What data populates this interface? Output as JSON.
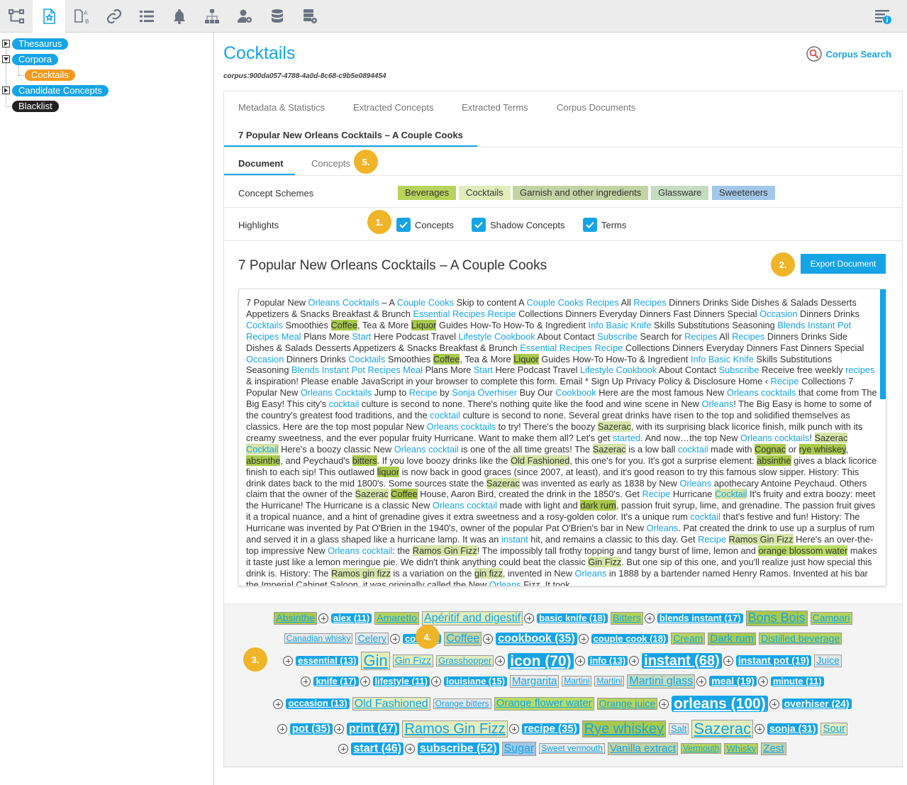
{
  "toolbar": {
    "icons": [
      "sitemap-icon",
      "corpus-star-icon",
      "compare-ab-icon",
      "link-icon",
      "list-icon",
      "bell-icon",
      "hierarchy-icon",
      "user-settings-icon",
      "database-icon",
      "server-settings-icon",
      "info-list-icon"
    ]
  },
  "sidebar": {
    "items": [
      "Thesaurus",
      "Corpora",
      "Cocktails",
      "Candidate Concepts",
      "Blacklist"
    ]
  },
  "header": {
    "title": "Cocktails",
    "corpus_id": "corpus:900da057-4788-4a0d-8c68-c9b5e0894454",
    "corpus_search": "Corpus Search"
  },
  "tabs": [
    "Metadata & Statistics",
    "Extracted Concepts",
    "Extracted Terms",
    "Corpus Documents",
    "7 Popular New Orleans Cocktails – A Couple Cooks"
  ],
  "subtabs": [
    "Document",
    "Concepts"
  ],
  "concept_schemes": {
    "label": "Concept Schemes",
    "items": [
      {
        "name": "Beverages",
        "color": "#b8d35b"
      },
      {
        "name": "Cocktails",
        "color": "#e3edbb"
      },
      {
        "name": "Garnish and other ingredients",
        "color": "#c4d3a4"
      },
      {
        "name": "Glassware",
        "color": "#c5dcc0"
      },
      {
        "name": "Sweeteners",
        "color": "#a3c7e8"
      }
    ]
  },
  "highlights": {
    "label": "Highlights",
    "options": [
      "Concepts",
      "Shadow Concepts",
      "Terms"
    ]
  },
  "badges": [
    "1.",
    "2.",
    "3.",
    "4.",
    "5."
  ],
  "document": {
    "title": "7 Popular New Orleans Cocktails – A Couple Cooks",
    "export_label": "Export Document",
    "body": "7 Popular New Orleans Cocktails – A Couple Cooks Skip to content A Couple Cooks Recipes All Recipes Dinners Drinks Side Dishes & Salads Desserts Appetizers & Snacks Breakfast & Brunch Essential Recipes Recipe Collections Dinners Everyday Dinners Fast Dinners Special Occasion Dinners Drinks Cocktails Smoothies Coffee, Tea & More Liquor Guides How-To How-To & Ingredient Info Basic Knife Skills Substitutions Seasoning Blends Instant Pot Recipes Meal Plans More Start Here Podcast Travel Lifestyle Cookbook About Contact Subscribe Search for Recipes All Recipes Dinners Drinks Side Dishes & Salads Desserts Appetizers & Snacks Breakfast & Brunch Essential Recipes Recipe Collections Dinners Everyday Dinners Fast Dinners Special Occasion Dinners Drinks Cocktails Smoothies Coffee, Tea & More Liquor Guides How-To How-To & Ingredient Info Basic Knife Skills Substitutions Seasoning Blends Instant Pot Recipes Meal Plans More Start Here Podcast Travel Lifestyle Cookbook About Contact Subscribe Receive free weekly recipes & inspiration! Please enable JavaScript in your browser to complete this form. Email * Sign Up Privacy Policy & Disclosure Home ‹ Recipe Collections 7 Popular New Orleans Cocktails Jump to Recipe by Sonja Overhiser Buy Our Cookbook Here are the most famous New Orleans cocktails that come from The Big Easy! This city's cocktail culture is second to none. There's nothing quite like the food and wine scene in New Orleans! The Big Easy is home to some of the country's greatest food traditions, and the cocktail culture is second to none. Several great drinks have risen to the top and solidified themselves as classics. Here are the top most popular New Orleans cocktails to try! There's the boozy Sazerac, with its surprising black licorice finish, milk punch with its creamy sweetness, and the ever popular fruity Hurricane. Want to make them all? Let's get started. And now…the top New Orleans cocktails! Sazerac Cocktail Here's a boozy classic New Orleans cocktail is one of the all time greats! The Sazerac is a low ball cocktail made with Cognac or rye whiskey, absinthe, and Peychaud's bitters. If you love boozy drinks like the Old Fashioned, this one's for you. It's got a surprise element: absinthe gives a black licorice finish to each sip! This outlawed liquor is now back in good graces (since 2007, at least), and it's good reason to try this famous slow sipper. History: This drink dates back to the mid 1800's. Some sources state the Sazerac was invented as early as 1838 by New Orleans apothecary Antoine Peychaud. Others claim that the owner of the Sazerac Coffee House, Aaron Bird, created the drink in the 1850's. Get Recipe Hurricane Cocktail It's fruity and extra boozy: meet the Hurricane! The Hurricane is a classic New Orleans cocktail made with light and dark rum, passion fruit syrup, lime, and grenadine. The passion fruit gives it a tropical nuance, and a hint of grenadine gives it extra sweetness and a rosy-golden color. It's a unique rum cocktail that's festive and fun! History: The Hurricane was invented by Pat O'Brien in the 1940's, owner of the popular Pat O'Brien's bar in New Orleans. Pat created the drink to use up a surplus of rum and served it in a glass shaped like a hurricane lamp. It was an instant hit, and remains a classic to this day. Get Recipe Ramos Gin Fizz Here's an over-the-top impressive New Orleans cocktail: the Ramos Gin Fizz! The impossibly tall frothy topping and tangy burst of lime, lemon and orange blossom water makes it taste just like a lemon meringue pie. We didn't think anything could beat the classic Gin Fizz. But one sip of this one, and you'll realize just how special this drink is. History: The Ramos gin fizz is a variation on the gin fizz, invented in New Orleans in 1888 by a bartender named Henry Ramos. Invented at his bar the Imperial Cabinet Saloon, it was originally called the New Orleans Fizz. It took",
    "highlights": [
      {
        "text": "Orleans",
        "cls": "k"
      },
      {
        "text": "Cocktails",
        "cls": "k"
      },
      {
        "text": "Couple Cooks",
        "cls": "k"
      },
      {
        "text": "Recipes",
        "cls": "k"
      },
      {
        "text": "Essential",
        "cls": "k"
      },
      {
        "text": "Recipe",
        "cls": "k"
      },
      {
        "text": "Occasion",
        "cls": "k"
      },
      {
        "text": "Coffee",
        "cls": "h1"
      },
      {
        "text": "Liquor",
        "cls": "h1"
      },
      {
        "text": "Info",
        "cls": "k"
      },
      {
        "text": "Basic Knife",
        "cls": "k"
      },
      {
        "text": "Blends",
        "cls": "k"
      },
      {
        "text": "Instant Pot",
        "cls": "k"
      },
      {
        "text": "Meal",
        "cls": "k"
      },
      {
        "text": "Start",
        "cls": "k"
      },
      {
        "text": "Lifestyle",
        "cls": "k"
      },
      {
        "text": "Cookbook",
        "cls": "k"
      },
      {
        "text": "Subscribe",
        "cls": "k"
      },
      {
        "text": "recipes",
        "cls": "k"
      },
      {
        "text": "Sonja Overhiser",
        "cls": "k"
      },
      {
        "text": "cocktails",
        "cls": "k"
      },
      {
        "text": "cocktail",
        "cls": "k"
      },
      {
        "text": "started",
        "cls": "k"
      },
      {
        "text": "Sazerac",
        "cls": "h2"
      },
      {
        "text": "Cocktail",
        "cls": "h2k"
      },
      {
        "text": "Cognac",
        "cls": "h1"
      },
      {
        "text": "rye whiskey",
        "cls": "h1"
      },
      {
        "text": "absinthe",
        "cls": "h1"
      },
      {
        "text": "bitters",
        "cls": "h1"
      },
      {
        "text": "Old Fashioned",
        "cls": "h2"
      },
      {
        "text": "liquor",
        "cls": "h1"
      },
      {
        "text": "dark rum",
        "cls": "h1"
      },
      {
        "text": "instant",
        "cls": "k"
      },
      {
        "text": "Ramos Gin Fizz",
        "cls": "h2"
      },
      {
        "text": "Ramos gin fizz",
        "cls": "h2"
      },
      {
        "text": "orange blossom water",
        "cls": "h3"
      },
      {
        "text": "Gin Fizz",
        "cls": "h2"
      },
      {
        "text": "gin fizz",
        "cls": "h2"
      }
    ]
  },
  "tag_cloud": [
    [
      {
        "t": "Absinthe",
        "k": "g",
        "c": "#a9c94c",
        "s": 14
      },
      {
        "t": "alex (11)",
        "k": "b",
        "s": 13
      },
      {
        "t": "Amaretto",
        "k": "g",
        "c": "#b8d35b",
        "s": 14
      },
      {
        "t": "Apéritif and digestif",
        "k": "g",
        "c": "#e3edbb",
        "s": 16
      },
      {
        "t": "basic knife (18)",
        "k": "b",
        "s": 13
      },
      {
        "t": "Bitters",
        "k": "g",
        "c": "#b8d35b",
        "s": 14
      },
      {
        "t": "blends instant (17)",
        "k": "b",
        "s": 13
      },
      {
        "t": "Bons Bois",
        "k": "g",
        "c": "#a9c94c",
        "s": 18
      },
      {
        "t": "Campari",
        "k": "g",
        "c": "#b8d35b",
        "s": 14
      }
    ],
    [
      {
        "t": "Canadian whisky",
        "k": "g",
        "c": "#e8e8e8",
        "s": 12
      },
      {
        "t": "Celery",
        "k": "g",
        "c": "#e8e8e8",
        "s": 14
      },
      {
        "t": "cocktail",
        "k": "b",
        "s": 13
      },
      {
        "t": "Coffee",
        "k": "g",
        "c": "#c4d3a4",
        "s": 16
      },
      {
        "t": "cookbook (35)",
        "k": "b",
        "s": 16
      },
      {
        "t": "couple cook (18)",
        "k": "b",
        "s": 13
      },
      {
        "t": "Cream",
        "k": "g",
        "c": "#b8d35b",
        "s": 14
      },
      {
        "t": "Dark rum",
        "k": "g",
        "c": "#a9c94c",
        "s": 15
      },
      {
        "t": "Distilled beverage",
        "k": "g",
        "c": "#b8d35b",
        "s": 14
      }
    ],
    [
      {
        "t": "essential (13)",
        "k": "b",
        "s": 13
      },
      {
        "t": "Gin",
        "k": "g",
        "c": "#e3edbb",
        "s": 22
      },
      {
        "t": "Gin Fizz",
        "k": "g",
        "c": "#e3edbb",
        "s": 14
      },
      {
        "t": "Grasshopper",
        "k": "g",
        "c": "#e3edbb",
        "s": 13
      },
      {
        "t": "icon (70)",
        "k": "b",
        "s": 21
      },
      {
        "t": "info (13)",
        "k": "b",
        "s": 13
      },
      {
        "t": "instant (68)",
        "k": "b",
        "s": 20
      },
      {
        "t": "instant pot (19)",
        "k": "b",
        "s": 14
      },
      {
        "t": "Juice",
        "k": "g",
        "c": "#e8e8e8",
        "s": 14
      }
    ],
    [
      {
        "t": "knife (17)",
        "k": "b",
        "s": 13
      },
      {
        "t": "lifestyle (11)",
        "k": "b",
        "s": 13
      },
      {
        "t": "louisiane (15)",
        "k": "b",
        "s": 13
      },
      {
        "t": "Margarita",
        "k": "g",
        "c": "#e8e8e8",
        "s": 15
      },
      {
        "t": "Martini",
        "k": "g",
        "c": "#e8e8e8",
        "s": 12
      },
      {
        "t": "Martini",
        "k": "g",
        "c": "#e8e8e8",
        "s": 12
      },
      {
        "t": "Martini glass",
        "k": "g",
        "c": "#c5dcc0",
        "s": 16
      },
      {
        "t": "meal (19)",
        "k": "b",
        "s": 14
      },
      {
        "t": "minute (11)",
        "k": "b",
        "s": 13
      }
    ],
    [
      {
        "t": "occasion (13)",
        "k": "b",
        "s": 13
      },
      {
        "t": "Old Fashioned",
        "k": "g",
        "c": "#e3edbb",
        "s": 16
      },
      {
        "t": "Orange bitters",
        "k": "g",
        "c": "#e8e8e8",
        "s": 12
      },
      {
        "t": "Orange flower water",
        "k": "g",
        "c": "#b9dc62",
        "s": 15
      },
      {
        "t": "Orange juice",
        "k": "g",
        "c": "#b8d35b",
        "s": 14
      },
      {
        "t": "orleans (100)",
        "k": "b",
        "s": 21
      },
      {
        "t": "overhiser (24)",
        "k": "b",
        "s": 14
      }
    ],
    [
      {
        "t": "pot (35)",
        "k": "b",
        "s": 15
      },
      {
        "t": "print (47)",
        "k": "b",
        "s": 16
      },
      {
        "t": "Ramos Gin Fizz",
        "k": "g",
        "c": "#e3edbb",
        "s": 20
      },
      {
        "t": "recipe (35)",
        "k": "b",
        "s": 15
      },
      {
        "t": "Rye whiskey",
        "k": "g",
        "c": "#a9c94c",
        "s": 20
      },
      {
        "t": "Salt",
        "k": "g",
        "c": "#e8e8e8",
        "s": 13
      },
      {
        "t": "Sazerac",
        "k": "g",
        "c": "#e3edbb",
        "s": 22
      },
      {
        "t": "sonja (31)",
        "k": "b",
        "s": 14
      },
      {
        "t": "Sour",
        "k": "g",
        "c": "#e3edbb",
        "s": 15
      }
    ],
    [
      {
        "t": "start (46)",
        "k": "b",
        "s": 16
      },
      {
        "t": "subscribe (52)",
        "k": "b",
        "s": 16
      },
      {
        "t": "Sugar",
        "k": "g",
        "c": "#a3c7e8",
        "s": 16
      },
      {
        "t": "Sweet vermouth",
        "k": "g",
        "c": "#e8e8e8",
        "s": 12
      },
      {
        "t": "Vanilla extract",
        "k": "g",
        "c": "#c4d3a4",
        "s": 15
      },
      {
        "t": "Vermouth",
        "k": "g",
        "c": "#b8d35b",
        "s": 12
      },
      {
        "t": "Whisky",
        "k": "g",
        "c": "#b8d35b",
        "s": 13
      },
      {
        "t": "Zest",
        "k": "g",
        "c": "#c4d3a4",
        "s": 15
      }
    ]
  ]
}
